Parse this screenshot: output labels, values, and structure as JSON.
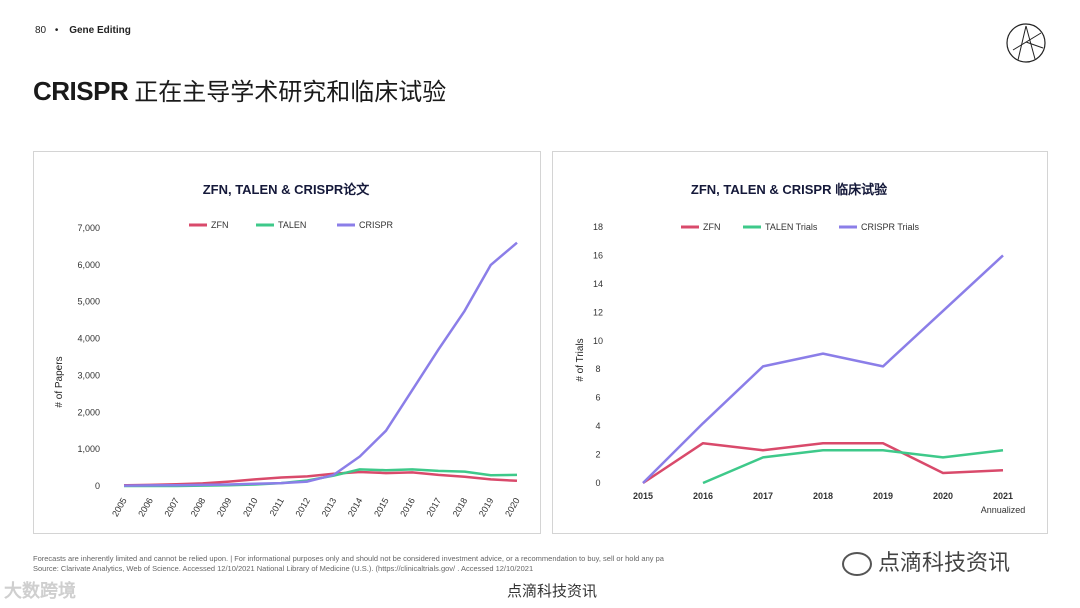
{
  "header": {
    "page_number": "80",
    "separator": "•",
    "section": "Gene Editing"
  },
  "title": {
    "bold": "CRISPR",
    "rest": "正在主导学术研究和临床试验"
  },
  "colors": {
    "zfn": "#d94a6b",
    "talen": "#3ec98a",
    "crispr": "#8b7ee8"
  },
  "chart_data": [
    {
      "type": "line",
      "title": "ZFN, TALEN & CRISPR论文",
      "xlabel": "",
      "ylabel": "# of Papers",
      "x": [
        "2005",
        "2006",
        "2007",
        "2008",
        "2009",
        "2010",
        "2011",
        "2012",
        "2013",
        "2014",
        "2015",
        "2016",
        "2017",
        "2018",
        "2019",
        "2020"
      ],
      "ylim": [
        0,
        7000
      ],
      "yticks": [
        0,
        1000,
        2000,
        3000,
        4000,
        5000,
        6000,
        7000
      ],
      "ytick_labels": [
        "0",
        "1,000",
        "2,000",
        "3,000",
        "4,000",
        "5,000",
        "6,000",
        "7,000"
      ],
      "series": [
        {
          "name": "ZFN",
          "values": [
            20,
            30,
            50,
            70,
            120,
            180,
            230,
            260,
            330,
            380,
            350,
            370,
            300,
            250,
            180,
            140
          ]
        },
        {
          "name": "TALEN",
          "values": [
            0,
            0,
            0,
            10,
            20,
            40,
            80,
            150,
            280,
            450,
            430,
            450,
            410,
            390,
            290,
            300
          ]
        },
        {
          "name": "CRISPR",
          "values": [
            10,
            15,
            20,
            30,
            40,
            60,
            80,
            120,
            300,
            800,
            1500,
            2600,
            3700,
            4750,
            6000,
            6600
          ]
        }
      ]
    },
    {
      "type": "line",
      "title": "ZFN, TALEN & CRISPR 临床试验",
      "xlabel": "",
      "ylabel": "# of Trials",
      "x": [
        "2015",
        "2016",
        "2017",
        "2018",
        "2019",
        "2020",
        "2021"
      ],
      "x_sub": [
        "",
        "",
        "",
        "",
        "",
        "",
        "Annualized"
      ],
      "ylim": [
        0,
        18
      ],
      "yticks": [
        0,
        2,
        4,
        6,
        8,
        10,
        12,
        14,
        16,
        18
      ],
      "ytick_labels": [
        "0",
        "2",
        "4",
        "6",
        "8",
        "10",
        "12",
        "14",
        "16",
        "18"
      ],
      "series": [
        {
          "name": "ZFN",
          "values": [
            0,
            2.8,
            2.3,
            2.8,
            2.8,
            0.7,
            0.9
          ]
        },
        {
          "name": "TALEN Trials",
          "values": [
            null,
            0,
            1.8,
            2.3,
            2.3,
            1.8,
            2.3
          ]
        },
        {
          "name": "CRISPR  Trials",
          "values": [
            0,
            4.2,
            8.2,
            9.1,
            8.2,
            12.1,
            16
          ]
        }
      ]
    }
  ],
  "footer": {
    "line1": "Forecasts are inherently limited and cannot be relied upon. | For informational purposes only and should not be considered investment advice, or a recommendation to buy, sell or hold any pa",
    "line2": "Source: Clarivate Analytics, Web of Science. Accessed 12/10/2021 National Library of Medicine (U.S.). (https://clinicaltrials.gov/ . Accessed 12/10/2021"
  },
  "watermarks": {
    "left": "大数跨境",
    "right": "点滴科技资讯",
    "bottom": "点滴科技资讯"
  }
}
